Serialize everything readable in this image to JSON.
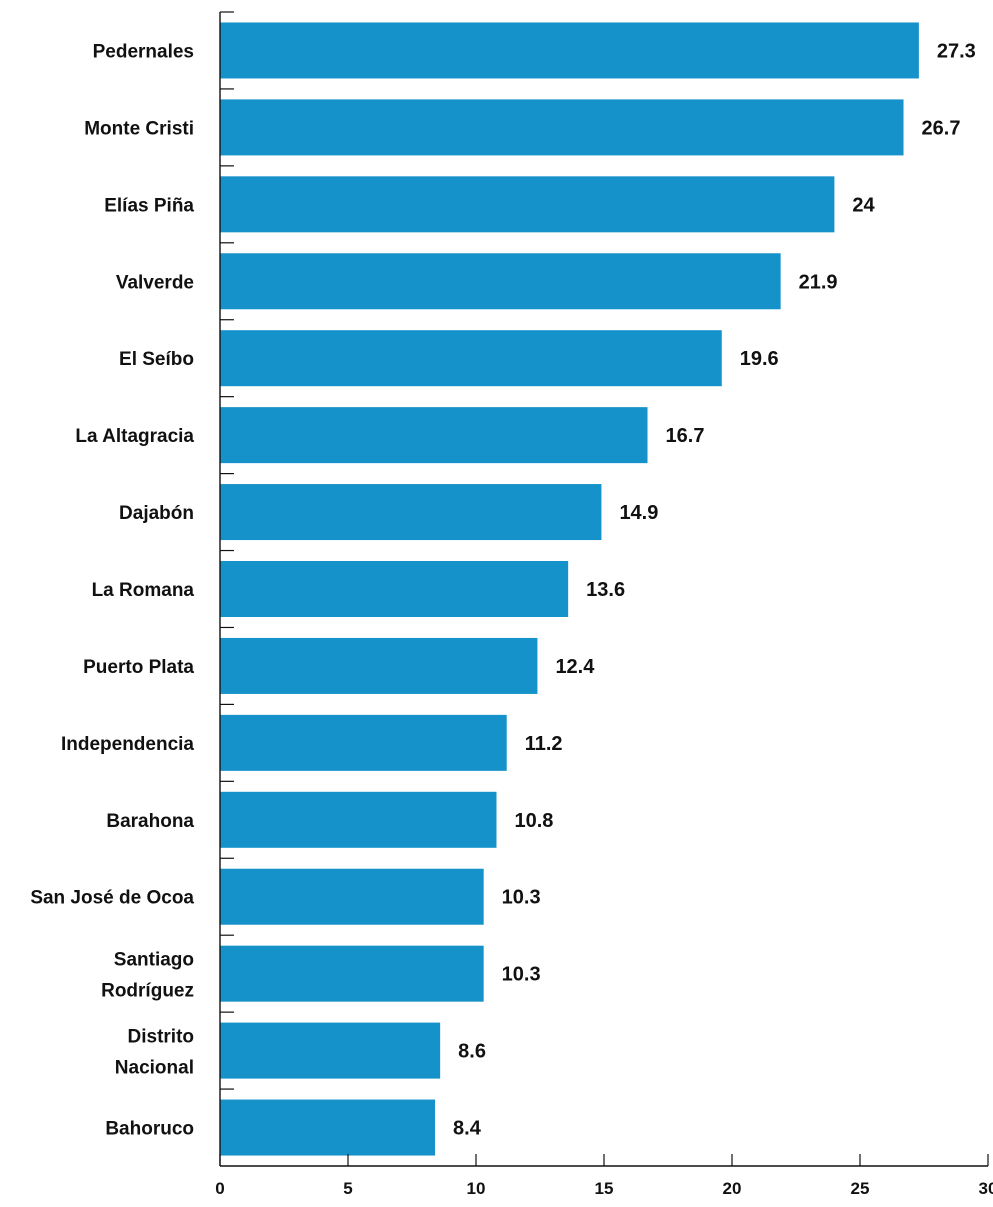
{
  "chart_data": {
    "type": "bar",
    "orientation": "horizontal",
    "title": "",
    "xlabel": "",
    "ylabel": "",
    "xlim": [
      0,
      30
    ],
    "x_ticks": [
      0,
      5,
      10,
      15,
      20,
      25,
      30
    ],
    "x_tick_labels": [
      "0",
      "5",
      "10",
      "15",
      "20",
      "25",
      "30"
    ],
    "grid": false,
    "legend": "none",
    "bar_color": "#1592c9",
    "categories": [
      "Pedernales",
      "Monte Cristi",
      "Elías Piña",
      "Valverde",
      "El Seíbo",
      "La Altagracia",
      "Dajabón",
      "La Romana",
      "Puerto Plata",
      "Independencia",
      "Barahona",
      "San José de Ocoa",
      "Santiago Rodríguez",
      "Distrito Nacional",
      "Bahoruco"
    ],
    "values": [
      27.3,
      26.7,
      24,
      21.9,
      19.6,
      16.7,
      14.9,
      13.6,
      12.4,
      11.2,
      10.8,
      10.3,
      10.3,
      8.6,
      8.4
    ],
    "value_labels": [
      "27.3",
      "26.7",
      "24",
      "21.9",
      "19.6",
      "16.7",
      "14.9",
      "13.6",
      "12.4",
      "11.2",
      "10.8",
      "10.3",
      "10.3",
      "8.6",
      "8.4"
    ]
  }
}
